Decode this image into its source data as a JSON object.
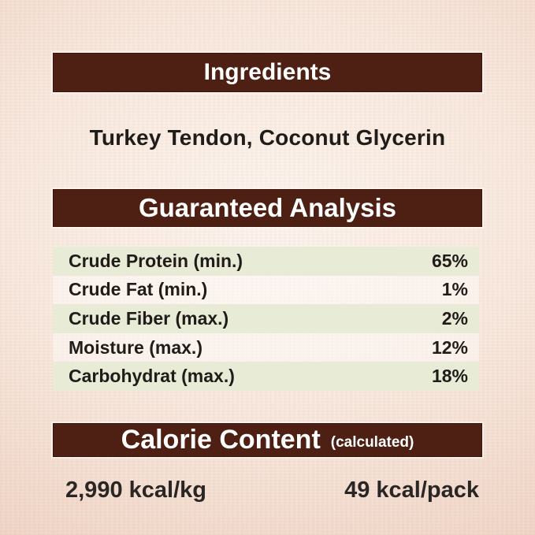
{
  "colors": {
    "header_bar": "#4d2013",
    "header_text": "#ffffff",
    "body_text": "#1f1c19",
    "row_stripe": "#e8ecd7",
    "background_center": "#fcf5ef",
    "background_edge": "#eacdbe"
  },
  "ingredients": {
    "title": "Ingredients",
    "content": "Turkey Tendon, Coconut Glycerin"
  },
  "guaranteed_analysis": {
    "title": "Guaranteed Analysis",
    "rows": [
      {
        "label": "Crude Protein (min.)",
        "value": "65%"
      },
      {
        "label": "Crude Fat (min.)",
        "value": "1%"
      },
      {
        "label": "Crude Fiber (max.)",
        "value": "2%"
      },
      {
        "label": "Moisture (max.)",
        "value": "12%"
      },
      {
        "label": "Carbohydrat (max.)",
        "value": "18%"
      }
    ]
  },
  "calorie_content": {
    "title": "Calorie Content",
    "subtitle": "(calculated)",
    "per_kg": "2,990 kcal/kg",
    "per_pack": "49 kcal/pack"
  }
}
